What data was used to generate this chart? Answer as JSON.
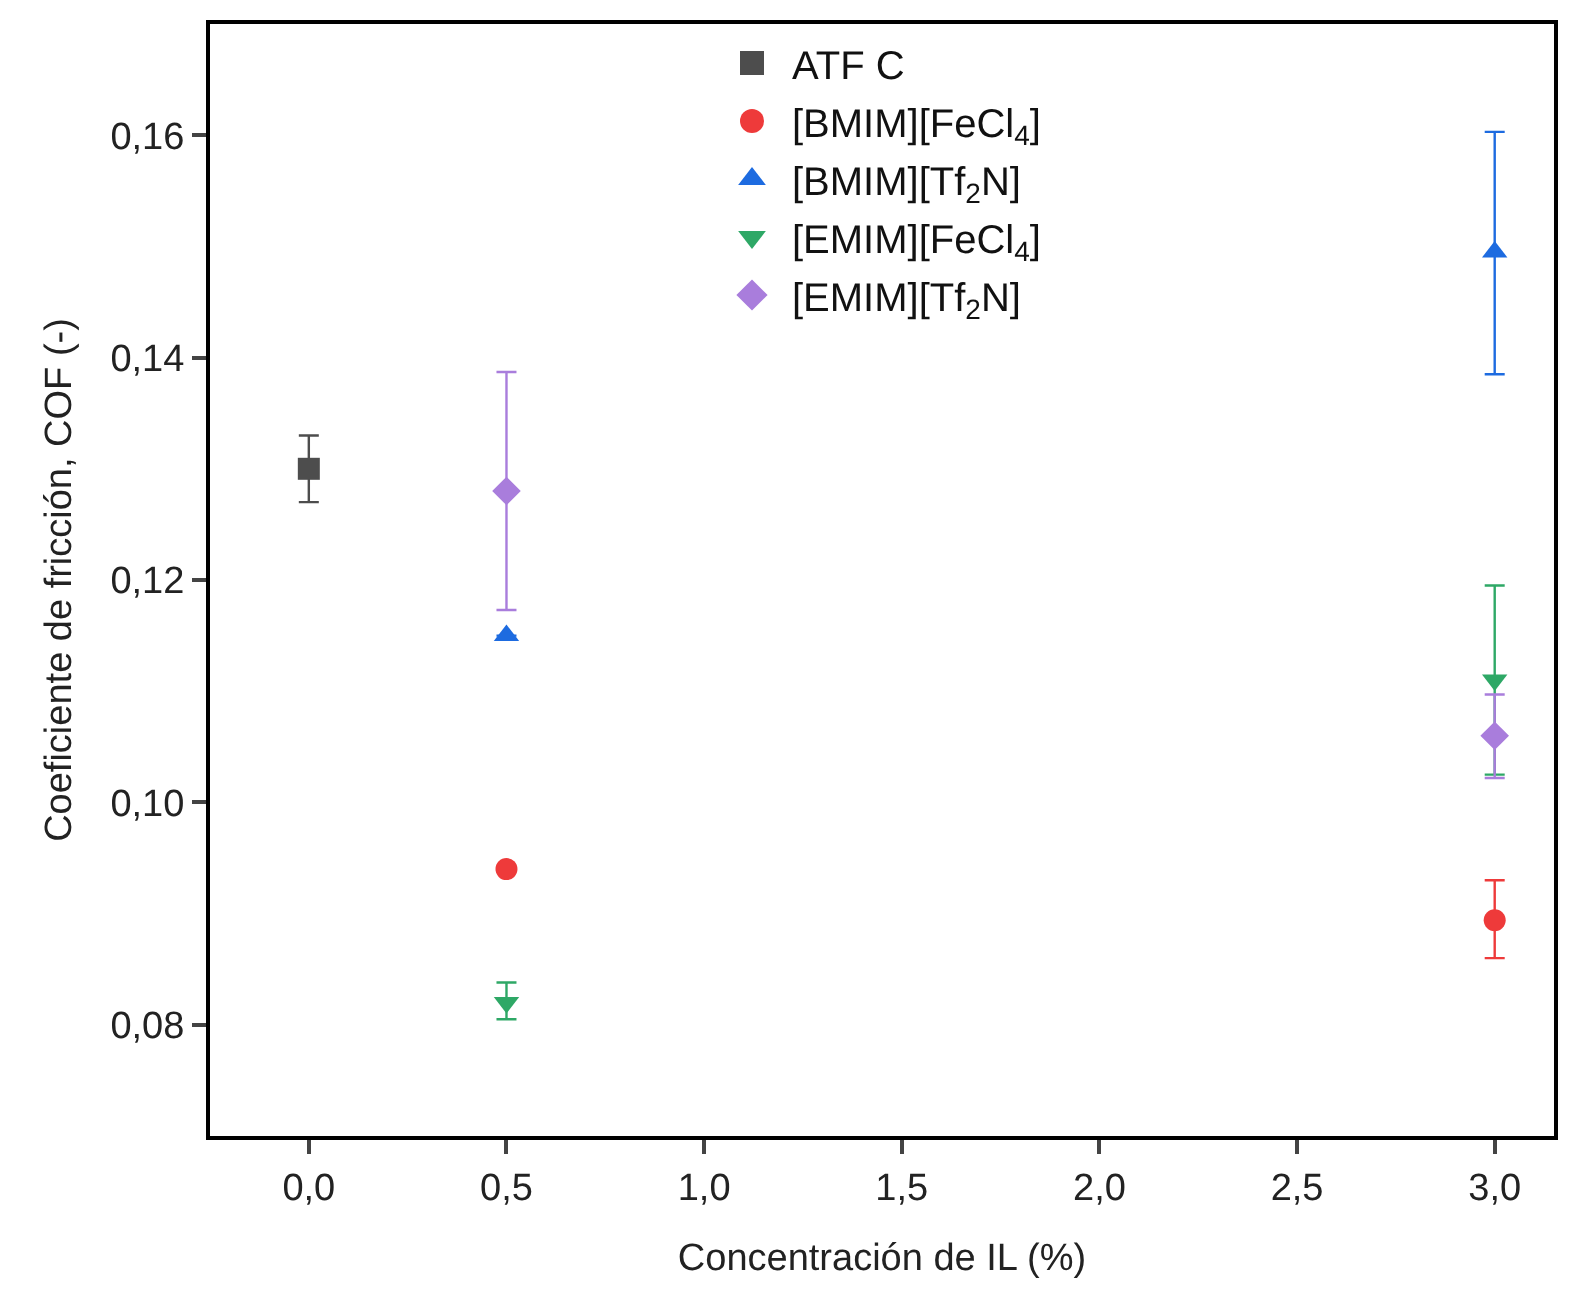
{
  "chart_data": {
    "type": "scatter",
    "xlabel": "Concentración de IL (%)",
    "ylabel": "Coeficiente de fricción, COF (-)",
    "xlim": [
      -0.25,
      3.15
    ],
    "ylim": [
      0.07,
      0.17
    ],
    "xticks": [
      {
        "value": 0,
        "label": "0,0"
      },
      {
        "value": 0.5,
        "label": "0,5"
      },
      {
        "value": 1,
        "label": "1,0"
      },
      {
        "value": 1.5,
        "label": "1,5"
      },
      {
        "value": 2,
        "label": "2,0"
      },
      {
        "value": 2.5,
        "label": "2,5"
      },
      {
        "value": 3,
        "label": "3,0"
      }
    ],
    "yticks": [
      {
        "value": 0.08,
        "label": "0,08"
      },
      {
        "value": 0.1,
        "label": "0,10"
      },
      {
        "value": 0.12,
        "label": "0,12"
      },
      {
        "value": 0.14,
        "label": "0,14"
      },
      {
        "value": 0.16,
        "label": "0,16"
      }
    ],
    "grid": false,
    "legend": "top",
    "series": [
      {
        "name": "ATF C",
        "color": "#4d4d4d",
        "marker": "square",
        "x": [
          0
        ],
        "values": [
          0.13
        ],
        "errors": [
          0.003
        ]
      },
      {
        "name": "[BMIM][FeCl$_{4}$]",
        "color": "#ee3a3a",
        "marker": "circle",
        "x": [
          0.5,
          3
        ],
        "values": [
          0.094,
          0.0894
        ],
        "errors": [
          null,
          [
            0.086,
            0.093
          ]
        ]
      },
      {
        "name": "[BMIM][Tf$_{2}$N]",
        "color": "#1d6be0",
        "marker": "triangle",
        "x": [
          0.5,
          3
        ],
        "values": [
          0.115,
          0.1495
        ],
        "errors": [
          null,
          [
            0.1385,
            0.1603
          ]
        ]
      },
      {
        "name": "[EMIM][FeCl$_{4}$]",
        "color": "#2ea866",
        "marker": "triangle-down",
        "x": [
          0.5,
          3
        ],
        "values": [
          0.082,
          0.111
        ],
        "errors": [
          [
            0.0805,
            0.0838
          ],
          [
            0.1025,
            0.1195
          ]
        ]
      },
      {
        "name": "[EMIM][Tf$_{2}$N]",
        "color": "#a97ddc",
        "marker": "diamond",
        "x": [
          0.5,
          3
        ],
        "values": [
          0.128,
          0.106
        ],
        "errors": [
          [
            0.1173,
            0.1387
          ],
          [
            0.1022,
            0.1097
          ]
        ]
      }
    ]
  }
}
